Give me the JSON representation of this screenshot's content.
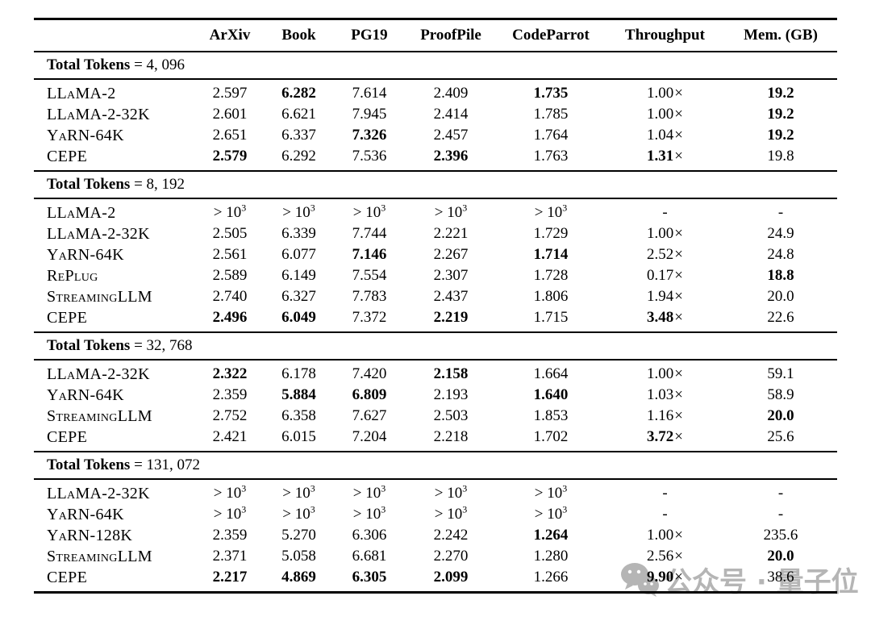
{
  "colors": {
    "text": "#000000",
    "rule": "#000000",
    "watermark": "#b5b5b5",
    "background": "#ffffff"
  },
  "table": {
    "headers": [
      "",
      "ArXiv",
      "Book",
      "PG19",
      "ProofPile",
      "CodeParrot",
      "Throughput",
      "Mem. (GB)"
    ],
    "sections": [
      {
        "title_label": "Total Tokens",
        "title_eq": "= 4, 096",
        "rows": [
          {
            "model": "LLaMA-2",
            "cells": [
              {
                "v": "2.597"
              },
              {
                "v": "6.282",
                "b": true
              },
              {
                "v": "7.614"
              },
              {
                "v": "2.409"
              },
              {
                "v": "1.735",
                "b": true
              },
              {
                "v": "1.00",
                "x": true
              },
              {
                "v": "19.2",
                "b": true
              }
            ]
          },
          {
            "model": "LLaMA-2-32K",
            "cells": [
              {
                "v": "2.601"
              },
              {
                "v": "6.621"
              },
              {
                "v": "7.945"
              },
              {
                "v": "2.414"
              },
              {
                "v": "1.785"
              },
              {
                "v": "1.00",
                "x": true
              },
              {
                "v": "19.2",
                "b": true
              }
            ]
          },
          {
            "model": "YaRN-64K",
            "cells": [
              {
                "v": "2.651"
              },
              {
                "v": "6.337"
              },
              {
                "v": "7.326",
                "b": true
              },
              {
                "v": "2.457"
              },
              {
                "v": "1.764"
              },
              {
                "v": "1.04",
                "x": true
              },
              {
                "v": "19.2",
                "b": true
              }
            ]
          },
          {
            "model": "CEPE",
            "cells": [
              {
                "v": "2.579",
                "b": true
              },
              {
                "v": "6.292"
              },
              {
                "v": "7.536"
              },
              {
                "v": "2.396",
                "b": true
              },
              {
                "v": "1.763"
              },
              {
                "v": "1.31",
                "x": true,
                "b": true
              },
              {
                "v": "19.8"
              }
            ]
          }
        ]
      },
      {
        "title_label": "Total Tokens",
        "title_eq": "= 8, 192",
        "rows": [
          {
            "model": "LLaMA-2",
            "cells": [
              {
                "v": "> 10",
                "sup": "3"
              },
              {
                "v": "> 10",
                "sup": "3"
              },
              {
                "v": "> 10",
                "sup": "3"
              },
              {
                "v": "> 10",
                "sup": "3"
              },
              {
                "v": "> 10",
                "sup": "3"
              },
              {
                "v": "-"
              },
              {
                "v": "-"
              }
            ]
          },
          {
            "model": "LLaMA-2-32K",
            "cells": [
              {
                "v": "2.505"
              },
              {
                "v": "6.339"
              },
              {
                "v": "7.744"
              },
              {
                "v": "2.221"
              },
              {
                "v": "1.729"
              },
              {
                "v": "1.00",
                "x": true
              },
              {
                "v": "24.9"
              }
            ]
          },
          {
            "model": "YaRN-64K",
            "cells": [
              {
                "v": "2.561"
              },
              {
                "v": "6.077"
              },
              {
                "v": "7.146",
                "b": true
              },
              {
                "v": "2.267"
              },
              {
                "v": "1.714",
                "b": true
              },
              {
                "v": "2.52",
                "x": true
              },
              {
                "v": "24.8"
              }
            ]
          },
          {
            "model": "RePlug",
            "cells": [
              {
                "v": "2.589"
              },
              {
                "v": "6.149"
              },
              {
                "v": "7.554"
              },
              {
                "v": "2.307"
              },
              {
                "v": "1.728"
              },
              {
                "v": "0.17",
                "x": true
              },
              {
                "v": "18.8",
                "b": true
              }
            ]
          },
          {
            "model": "StreamingLLM",
            "cells": [
              {
                "v": "2.740"
              },
              {
                "v": "6.327"
              },
              {
                "v": "7.783"
              },
              {
                "v": "2.437"
              },
              {
                "v": "1.806"
              },
              {
                "v": "1.94",
                "x": true
              },
              {
                "v": "20.0"
              }
            ]
          },
          {
            "model": "CEPE",
            "cells": [
              {
                "v": "2.496",
                "b": true
              },
              {
                "v": "6.049",
                "b": true
              },
              {
                "v": "7.372"
              },
              {
                "v": "2.219",
                "b": true
              },
              {
                "v": "1.715"
              },
              {
                "v": "3.48",
                "x": true,
                "b": true
              },
              {
                "v": "22.6"
              }
            ]
          }
        ]
      },
      {
        "title_label": "Total Tokens",
        "title_eq": "= 32, 768",
        "rows": [
          {
            "model": "LLaMA-2-32K",
            "cells": [
              {
                "v": "2.322",
                "b": true
              },
              {
                "v": "6.178"
              },
              {
                "v": "7.420"
              },
              {
                "v": "2.158",
                "b": true
              },
              {
                "v": "1.664"
              },
              {
                "v": "1.00",
                "x": true
              },
              {
                "v": "59.1"
              }
            ]
          },
          {
            "model": "YaRN-64K",
            "cells": [
              {
                "v": "2.359"
              },
              {
                "v": "5.884",
                "b": true
              },
              {
                "v": "6.809",
                "b": true
              },
              {
                "v": "2.193"
              },
              {
                "v": "1.640",
                "b": true
              },
              {
                "v": "1.03",
                "x": true
              },
              {
                "v": "58.9"
              }
            ]
          },
          {
            "model": "StreamingLLM",
            "cells": [
              {
                "v": "2.752"
              },
              {
                "v": "6.358"
              },
              {
                "v": "7.627"
              },
              {
                "v": "2.503"
              },
              {
                "v": "1.853"
              },
              {
                "v": "1.16",
                "x": true
              },
              {
                "v": "20.0",
                "b": true
              }
            ]
          },
          {
            "model": "CEPE",
            "cells": [
              {
                "v": "2.421"
              },
              {
                "v": "6.015"
              },
              {
                "v": "7.204"
              },
              {
                "v": "2.218"
              },
              {
                "v": "1.702"
              },
              {
                "v": "3.72",
                "x": true,
                "b": true
              },
              {
                "v": "25.6"
              }
            ]
          }
        ]
      },
      {
        "title_label": "Total Tokens",
        "title_eq": "= 131, 072",
        "rows": [
          {
            "model": "LLaMA-2-32K",
            "cells": [
              {
                "v": "> 10",
                "sup": "3"
              },
              {
                "v": "> 10",
                "sup": "3"
              },
              {
                "v": "> 10",
                "sup": "3"
              },
              {
                "v": "> 10",
                "sup": "3"
              },
              {
                "v": "> 10",
                "sup": "3"
              },
              {
                "v": "-"
              },
              {
                "v": "-"
              }
            ]
          },
          {
            "model": "YaRN-64K",
            "cells": [
              {
                "v": "> 10",
                "sup": "3"
              },
              {
                "v": "> 10",
                "sup": "3"
              },
              {
                "v": "> 10",
                "sup": "3"
              },
              {
                "v": "> 10",
                "sup": "3"
              },
              {
                "v": "> 10",
                "sup": "3"
              },
              {
                "v": "-"
              },
              {
                "v": "-"
              }
            ]
          },
          {
            "model": "YaRN-128K",
            "cells": [
              {
                "v": "2.359"
              },
              {
                "v": "5.270"
              },
              {
                "v": "6.306"
              },
              {
                "v": "2.242"
              },
              {
                "v": "1.264",
                "b": true
              },
              {
                "v": "1.00",
                "x": true
              },
              {
                "v": "235.6"
              }
            ]
          },
          {
            "model": "StreamingLLM",
            "cells": [
              {
                "v": "2.371"
              },
              {
                "v": "5.058"
              },
              {
                "v": "6.681"
              },
              {
                "v": "2.270"
              },
              {
                "v": "1.280"
              },
              {
                "v": "2.56",
                "x": true
              },
              {
                "v": "20.0",
                "b": true
              }
            ]
          },
          {
            "model": "CEPE",
            "cells": [
              {
                "v": "2.217",
                "b": true
              },
              {
                "v": "4.869",
                "b": true
              },
              {
                "v": "6.305",
                "b": true
              },
              {
                "v": "2.099",
                "b": true
              },
              {
                "v": "1.266"
              },
              {
                "v": "9.90",
                "x": true,
                "b": true
              },
              {
                "v": "38.6"
              }
            ]
          }
        ]
      }
    ]
  },
  "watermark": {
    "text": "公众号 · 量子位"
  }
}
